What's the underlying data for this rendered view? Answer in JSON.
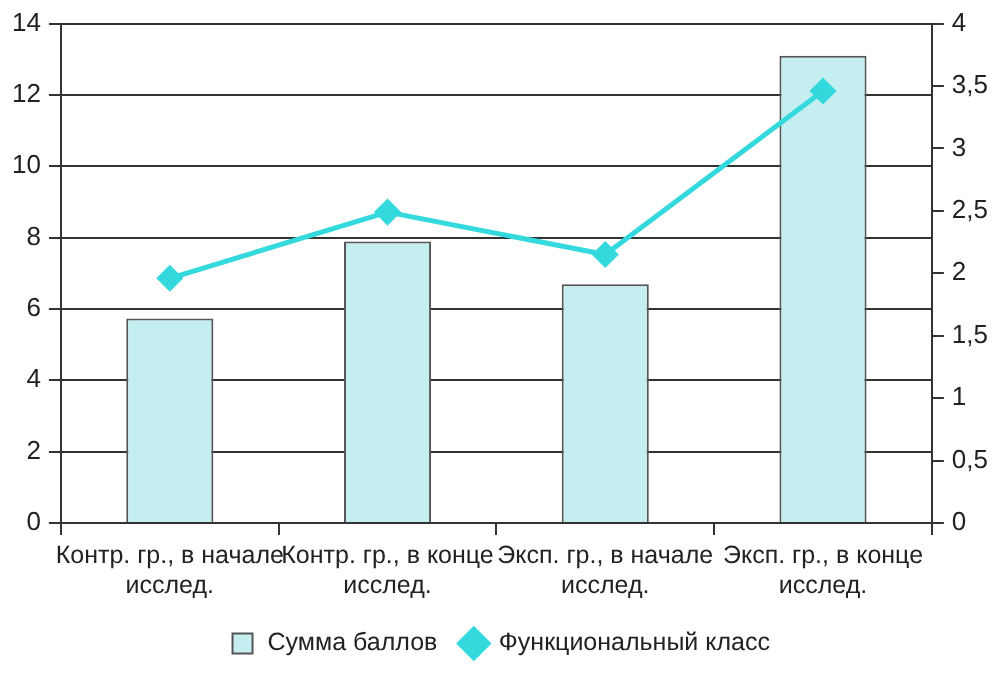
{
  "chart_data": {
    "type": "bar",
    "categories": [
      "Контр. гр., в начале исслед.",
      "Контр. гр., в конце исслед.",
      "Эксп. гр., в начале исслед.",
      "Эксп. гр., в конце исслед."
    ],
    "series": [
      {
        "name": "Сумма баллов",
        "color": "#c4eef0",
        "values": [
          5.73,
          7.89,
          6.69,
          13.1
        ]
      },
      {
        "name": "Функциональный класс",
        "type": "line",
        "axis": "y2",
        "color": "#33d9dc",
        "values": [
          1.96,
          2.49,
          2.15,
          3.46
        ]
      }
    ],
    "ylim": [
      0,
      14
    ],
    "yticks": [
      0,
      2,
      4,
      6,
      8,
      10,
      12,
      14
    ],
    "y2lim": [
      0,
      4
    ],
    "y2ticks": [
      0,
      {
        "value": 0.5,
        "label": "0,5"
      },
      1,
      {
        "value": 1.5,
        "label": "1,5"
      },
      2,
      {
        "value": 2.5,
        "label": "2,5"
      },
      3,
      {
        "value": 3.5,
        "label": "3,5"
      },
      4
    ],
    "grid": "y",
    "legend": "bottom",
    "marker": "diamond",
    "line_style": "solid"
  }
}
